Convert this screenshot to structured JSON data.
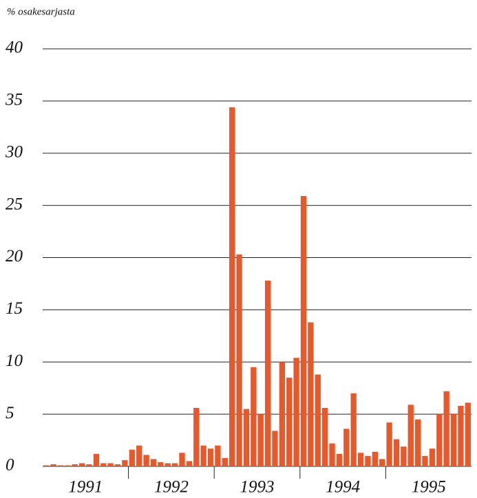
{
  "chart_data": {
    "type": "bar",
    "y_axis_label": "% osakesarjasta",
    "groups": [
      "1991",
      "1992",
      "1993",
      "1994",
      "1995"
    ],
    "values": [
      0.1,
      0.2,
      0.1,
      0.1,
      0.2,
      0.3,
      0.2,
      1.2,
      0.3,
      0.3,
      0.2,
      0.6,
      1.6,
      2.0,
      1.1,
      0.7,
      0.4,
      0.3,
      0.3,
      1.3,
      0.5,
      5.6,
      2.0,
      1.7,
      2.0,
      0.8,
      34.4,
      20.3,
      5.5,
      9.5,
      5.0,
      17.8,
      3.4,
      10.0,
      8.5,
      10.4,
      25.9,
      13.8,
      8.8,
      5.6,
      2.2,
      1.2,
      3.6,
      7.0,
      1.3,
      1.0,
      1.4,
      0.7,
      4.2,
      2.6,
      1.9,
      5.9,
      4.5,
      1.0,
      1.7,
      5.0,
      7.2,
      5.0,
      5.8,
      6.1
    ],
    "color": "#e8582a",
    "ylim": [
      0,
      40
    ],
    "yticks": [
      0,
      5,
      10,
      15,
      20,
      25,
      30,
      35,
      40
    ],
    "grid": true
  }
}
